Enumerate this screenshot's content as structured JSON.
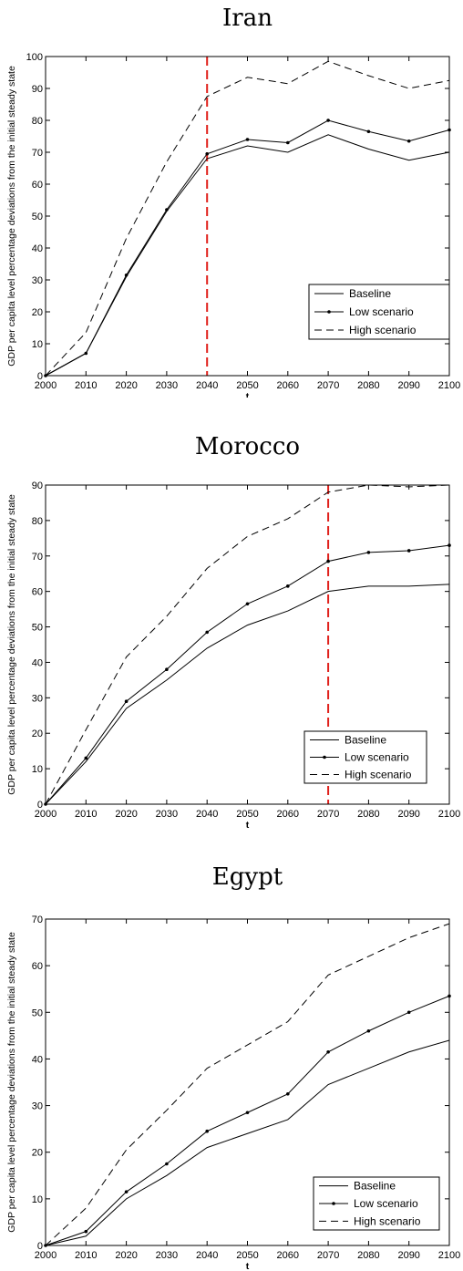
{
  "chart_data": [
    {
      "type": "line",
      "title": "Iran",
      "xlabel": "t",
      "ylabel": "GDP per capita level percentage deviations from the initial steady state",
      "x": [
        2000,
        2010,
        2020,
        2030,
        2040,
        2050,
        2060,
        2070,
        2080,
        2090,
        2100
      ],
      "xlim": [
        2000,
        2100
      ],
      "ylim": [
        0,
        100
      ],
      "xticks": [
        "2000",
        "2010",
        "2020",
        "2030",
        "2040",
        "2050",
        "2060",
        "2070",
        "2080",
        "2090",
        "2100"
      ],
      "yticks": [
        "0",
        "10",
        "20",
        "30",
        "40",
        "50",
        "60",
        "70",
        "80",
        "90",
        "100"
      ],
      "vline": 2040,
      "vline_color": "#e0201b",
      "legend_position": "lower-right",
      "series": [
        {
          "name": "Baseline",
          "style": "solid",
          "values": [
            0,
            7,
            31,
            51.5,
            68,
            72,
            70,
            75.5,
            71,
            67.5,
            70
          ]
        },
        {
          "name": "Low scenario",
          "style": "solid-dots",
          "values": [
            0,
            7,
            31.5,
            52,
            69.5,
            74,
            73,
            80,
            76.5,
            73.5,
            77
          ]
        },
        {
          "name": "High scenario",
          "style": "dashed",
          "values": [
            0,
            13.5,
            43,
            67,
            87.5,
            93.5,
            91.5,
            98.5,
            94,
            90,
            92.5
          ]
        }
      ]
    },
    {
      "type": "line",
      "title": "Morocco",
      "xlabel": "t",
      "ylabel": "GDP per capita level percentage deviations from the initial steady state",
      "x": [
        2000,
        2010,
        2020,
        2030,
        2040,
        2050,
        2060,
        2070,
        2080,
        2090,
        2100
      ],
      "xlim": [
        2000,
        2100
      ],
      "ylim": [
        0,
        90
      ],
      "xticks": [
        "2000",
        "2010",
        "2020",
        "2030",
        "2040",
        "2050",
        "2060",
        "2070",
        "2080",
        "2090",
        "2100"
      ],
      "yticks": [
        "0",
        "10",
        "20",
        "30",
        "40",
        "50",
        "60",
        "70",
        "80",
        "90"
      ],
      "vline": 2070,
      "vline_color": "#e0201b",
      "legend_position": "lower-right",
      "series": [
        {
          "name": "Baseline",
          "style": "solid",
          "values": [
            0,
            12,
            27,
            35,
            44,
            50.5,
            54.5,
            60,
            61.5,
            61.5,
            62
          ]
        },
        {
          "name": "Low scenario",
          "style": "solid-dots",
          "values": [
            0,
            13,
            29,
            38,
            48.5,
            56.5,
            61.5,
            68.5,
            71,
            71.5,
            73
          ]
        },
        {
          "name": "High scenario",
          "style": "dashed",
          "values": [
            0,
            21,
            41.5,
            53,
            66.5,
            75.5,
            80.5,
            88,
            90,
            89.5,
            90
          ]
        }
      ]
    },
    {
      "type": "line",
      "title": "Egypt",
      "xlabel": "t",
      "ylabel": "GDP per capita level percentage deviations from the initial steady state",
      "x": [
        2000,
        2010,
        2020,
        2030,
        2040,
        2050,
        2060,
        2070,
        2080,
        2090,
        2100
      ],
      "xlim": [
        2000,
        2100
      ],
      "ylim": [
        0,
        70
      ],
      "xticks": [
        "2000",
        "2010",
        "2020",
        "2030",
        "2040",
        "2050",
        "2060",
        "2070",
        "2080",
        "2090",
        "2100"
      ],
      "yticks": [
        "0",
        "10",
        "20",
        "30",
        "40",
        "50",
        "60",
        "70"
      ],
      "vline": null,
      "legend_position": "lower-right",
      "series": [
        {
          "name": "Baseline",
          "style": "solid",
          "values": [
            0,
            2,
            10,
            15,
            21,
            24,
            27,
            34.5,
            38,
            41.5,
            44
          ]
        },
        {
          "name": "Low scenario",
          "style": "solid-dots",
          "values": [
            0,
            3,
            11.5,
            17.5,
            24.5,
            28.5,
            32.5,
            41.5,
            46,
            50,
            53.5
          ]
        },
        {
          "name": "High scenario",
          "style": "dashed",
          "values": [
            0,
            8,
            20.5,
            29,
            38,
            43,
            48,
            58,
            62,
            66,
            69
          ]
        }
      ]
    }
  ]
}
